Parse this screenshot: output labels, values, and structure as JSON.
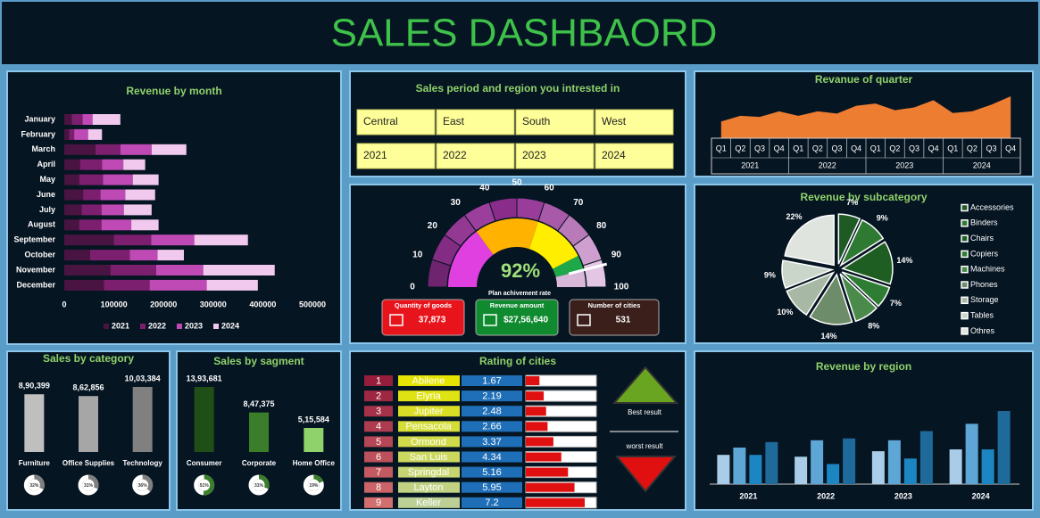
{
  "title": "SALES DASHBAORD",
  "filters": {
    "title": "Sales period and region you intrested in",
    "options": [
      [
        "Central",
        "East",
        "South",
        "West"
      ],
      [
        "2021",
        "2022",
        "2023",
        "2024"
      ]
    ]
  },
  "kpis": [
    {
      "label": "Quantity of goods",
      "value": 37873,
      "value_label": "37,873",
      "color": "#e8141c"
    },
    {
      "label": "Revenue amount",
      "value": 2756640,
      "value_label": "$27,56,640",
      "color": "#0f8a2e"
    },
    {
      "label": "Number of cities",
      "value": 531,
      "value_label": "531",
      "color": "#3b1f1a"
    }
  ],
  "chart_data": [
    {
      "type": "bar",
      "orientation": "horizontal",
      "stacked": true,
      "title": "Revenue by month",
      "categories": [
        "January",
        "February",
        "March",
        "April",
        "May",
        "June",
        "July",
        "August",
        "September",
        "October",
        "November",
        "December"
      ],
      "series": [
        {
          "name": "2021",
          "color": "#4a1442",
          "values": [
            15000,
            10000,
            63000,
            32000,
            30000,
            38000,
            35000,
            30000,
            100000,
            52000,
            93000,
            80000
          ]
        },
        {
          "name": "2022",
          "color": "#7b1f6e",
          "values": [
            22000,
            10000,
            50000,
            44000,
            48000,
            35000,
            40000,
            45000,
            75000,
            80000,
            92000,
            92000
          ]
        },
        {
          "name": "2023",
          "color": "#c04ab5",
          "values": [
            20000,
            28000,
            63000,
            43000,
            60000,
            50000,
            45000,
            60000,
            87000,
            56000,
            95000,
            115000
          ]
        },
        {
          "name": "2024",
          "color": "#f2c9ee",
          "values": [
            56000,
            28000,
            70000,
            44000,
            52000,
            60000,
            56000,
            55000,
            108000,
            53000,
            144000,
            103000
          ]
        }
      ],
      "xlim": [
        0,
        500000
      ],
      "xticks": [
        0,
        100000,
        200000,
        300000,
        400000,
        500000
      ]
    },
    {
      "type": "area",
      "title": "Revanue of quarter",
      "categories": [
        "Q1",
        "Q2",
        "Q3",
        "Q4",
        "Q1",
        "Q2",
        "Q3",
        "Q4",
        "Q1",
        "Q2",
        "Q3",
        "Q4",
        "Q1",
        "Q2",
        "Q3",
        "Q4"
      ],
      "groups": [
        "2021",
        "2022",
        "2023",
        "2024"
      ],
      "values": [
        30,
        40,
        38,
        48,
        40,
        48,
        44,
        58,
        62,
        50,
        55,
        68,
        45,
        48,
        60,
        75
      ],
      "color": "#ed7d31"
    },
    {
      "type": "gauge",
      "ticks": [
        0,
        10,
        20,
        30,
        40,
        50,
        60,
        70,
        80,
        90,
        100
      ],
      "value": 92,
      "value_label": "92%",
      "label": "Plan achivement rate"
    },
    {
      "type": "pie",
      "title": "Revenue by  subcategory",
      "categories": [
        "Accessories",
        "Binders",
        "Chairs",
        "Copiers",
        "Machines",
        "Phones",
        "Storage",
        "Tables",
        "Othres"
      ],
      "values": [
        7,
        9,
        14,
        7,
        8,
        14,
        10,
        9,
        22
      ],
      "value_labels": [
        "7%",
        "9%",
        "14%",
        "7%",
        "8%",
        "14%",
        "10%",
        "9%",
        "22%"
      ],
      "colors": [
        "#1f5a25",
        "#2e7a33",
        "#1e5e22",
        "#2f7d35",
        "#4a8a4a",
        "#6c8c6a",
        "#a7b9a5",
        "#cbd6ca",
        "#dfe5de"
      ]
    },
    {
      "type": "bar",
      "title": "Sales by category",
      "categories": [
        "Furniture",
        "Office Supplies",
        "Technology"
      ],
      "values": [
        890399,
        862856,
        1003384
      ],
      "value_labels": [
        "8,90,399",
        "8,62,856",
        "10,03,384"
      ],
      "colors": [
        "#bfbfbf",
        "#a6a6a6",
        "#808080"
      ],
      "shares": [
        32,
        31,
        36
      ],
      "share_labels": [
        "32%",
        "31%",
        "36%"
      ],
      "share_color": "#7f7f7f"
    },
    {
      "type": "bar",
      "title": "Sales by sagment",
      "categories": [
        "Consumer",
        "Corporate",
        "Home Office"
      ],
      "values": [
        1393681,
        847375,
        515584
      ],
      "value_labels": [
        "13,93,681",
        "8,47,375",
        "5,15,584"
      ],
      "colors": [
        "#1f4f16",
        "#3a7d2a",
        "#8fd16a"
      ],
      "shares": [
        51,
        31,
        19
      ],
      "share_labels": [
        "51%",
        "31%",
        "19%"
      ],
      "share_color": "#3a7d2a"
    },
    {
      "type": "rating",
      "title": "Rating of cities",
      "ranks": [
        1,
        2,
        3,
        4,
        5,
        6,
        7,
        8,
        9
      ],
      "categories": [
        "Abilene",
        "Elyria",
        "Jupiter",
        "Pensacola",
        "Ormond",
        "San Luis",
        "Springdal",
        "Layton",
        "Keller"
      ],
      "values": [
        1.67,
        2.19,
        2.48,
        2.66,
        3.37,
        4.34,
        5.16,
        5.95,
        7.2
      ],
      "color": "#e01010",
      "annotations": [
        "Best result",
        "worst result"
      ]
    },
    {
      "type": "bar",
      "title": "Revenue by region",
      "categories": [
        "2021",
        "2022",
        "2023",
        "2024"
      ],
      "series": [
        {
          "color": "#a9cde8",
          "values": [
            32,
            30,
            36,
            38
          ]
        },
        {
          "color": "#5ea6d6",
          "values": [
            40,
            48,
            48,
            66
          ]
        },
        {
          "color": "#1b86c2",
          "values": [
            32,
            22,
            28,
            38
          ]
        },
        {
          "color": "#1e6a9a",
          "values": [
            46,
            50,
            58,
            80
          ]
        }
      ]
    }
  ]
}
